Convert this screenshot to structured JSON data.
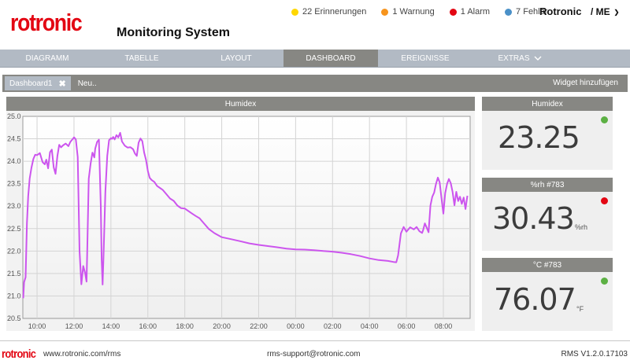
{
  "header": {
    "logo": "rotronic",
    "title": "Monitoring System",
    "status": [
      {
        "label": "22 Erinnerungen",
        "color": "#ffd700"
      },
      {
        "label": "1 Warnung",
        "color": "#f7941d"
      },
      {
        "label": "1 Alarm",
        "color": "#e30613"
      },
      {
        "label": "7 Fehler",
        "color": "#4a90c8"
      }
    ],
    "user": "Rotronic",
    "user_menu": "/ ME",
    "user_menu_chevron": "chevron-down-icon"
  },
  "nav": {
    "items": [
      {
        "label": "DIAGRAMM"
      },
      {
        "label": "TABELLE"
      },
      {
        "label": "LAYOUT"
      },
      {
        "label": "DASHBOARD",
        "active": true
      },
      {
        "label": "EREIGNISSE"
      },
      {
        "label": "EXTRAS"
      }
    ]
  },
  "dashboard_tabs": {
    "active_tab": "Dashboard1",
    "close_icon": "close-icon",
    "new_tab": "Neu..",
    "add_widget": "Widget hinzufügen"
  },
  "widgets": {
    "chart": {
      "title": "Humidex"
    },
    "values": [
      {
        "title": "Humidex",
        "value": "23.25",
        "unit": "",
        "status_color": "#5cb043"
      },
      {
        "title": "%rh #783",
        "value": "30.43",
        "unit": "%rh",
        "status_color": "#e30613"
      },
      {
        "title": "°C #783",
        "value": "76.07",
        "unit": "°F",
        "status_color": "#5cb043"
      }
    ]
  },
  "chart_data": {
    "type": "line",
    "title": "Humidex",
    "xlabel": "",
    "ylabel": "",
    "ylim": [
      20.5,
      25.0
    ],
    "yticks": [
      "25.0",
      "24.5",
      "24.0",
      "23.5",
      "23.0",
      "22.5",
      "22.0",
      "21.5",
      "21.0",
      "20.5"
    ],
    "xticks": [
      "10:00",
      "12:00",
      "14:00",
      "16:00",
      "18:00",
      "20:00",
      "22:00",
      "00:00",
      "02:00",
      "04:00",
      "06:00",
      "08:00"
    ],
    "xlim_hours_from_1000": [
      -0.77,
      23.45
    ],
    "grid": true,
    "line_color": "#cc55ee",
    "series": [
      {
        "name": "Humidex",
        "x_hours_from_1000": [
          -0.75,
          -0.7,
          -0.62,
          -0.55,
          -0.48,
          -0.4,
          -0.3,
          -0.2,
          -0.1,
          0.0,
          0.15,
          0.3,
          0.42,
          0.5,
          0.6,
          0.7,
          0.8,
          0.9,
          1.0,
          1.1,
          1.2,
          1.3,
          1.4,
          1.55,
          1.7,
          1.8,
          1.9,
          2.0,
          2.1,
          2.2,
          2.3,
          2.4,
          2.5,
          2.6,
          2.68,
          2.72,
          2.8,
          2.9,
          3.0,
          3.1,
          3.15,
          3.25,
          3.35,
          3.45,
          3.5,
          3.55,
          3.6,
          3.7,
          3.8,
          3.9,
          4.0,
          4.02,
          4.06,
          4.12,
          4.2,
          4.3,
          4.4,
          4.5,
          4.6,
          4.75,
          4.9,
          5.05,
          5.2,
          5.3,
          5.4,
          5.5,
          5.6,
          5.7,
          5.8,
          5.9,
          6.0,
          6.1,
          6.2,
          6.35,
          6.5,
          6.65,
          6.8,
          7.0,
          7.2,
          7.4,
          7.6,
          7.8,
          8.0,
          8.2,
          8.4,
          8.6,
          8.8,
          9.0,
          9.3,
          9.6,
          10.0,
          10.5,
          11.0,
          11.5,
          12.0,
          12.5,
          13.0,
          13.5,
          14.0,
          14.5,
          15.0,
          15.5,
          16.0,
          16.5,
          17.0,
          17.5,
          18.0,
          18.5,
          19.0,
          19.3,
          19.45,
          19.55,
          19.7,
          19.85,
          20.0,
          20.2,
          20.4,
          20.55,
          20.7,
          20.85,
          20.9,
          21.0,
          21.1,
          21.2,
          21.3,
          21.4,
          21.5,
          21.6,
          21.7,
          21.8,
          21.9,
          22.0,
          22.1,
          22.2,
          22.3,
          22.4,
          22.5,
          22.6,
          22.7,
          22.8,
          22.9,
          23.0,
          23.1,
          23.2,
          23.3
        ],
        "y": [
          20.95,
          21.3,
          21.4,
          22.6,
          23.2,
          23.6,
          23.85,
          24.05,
          24.15,
          24.15,
          24.2,
          24.0,
          23.95,
          24.05,
          23.85,
          24.2,
          24.25,
          23.85,
          23.7,
          24.1,
          24.35,
          24.3,
          24.35,
          24.4,
          24.35,
          24.45,
          24.5,
          24.55,
          24.5,
          24.1,
          22.0,
          21.25,
          21.65,
          21.5,
          21.3,
          22.0,
          23.6,
          23.95,
          24.2,
          24.1,
          24.3,
          24.45,
          24.5,
          23.0,
          21.8,
          21.25,
          21.9,
          23.3,
          24.1,
          24.45,
          24.5,
          24.5,
          24.5,
          24.55,
          24.5,
          24.6,
          24.55,
          24.65,
          24.45,
          24.35,
          24.3,
          24.3,
          24.25,
          24.15,
          24.1,
          24.4,
          24.5,
          24.45,
          24.2,
          24.05,
          23.8,
          23.65,
          23.6,
          23.55,
          23.45,
          23.4,
          23.35,
          23.25,
          23.15,
          23.1,
          23.0,
          22.95,
          22.95,
          22.9,
          22.85,
          22.8,
          22.75,
          22.65,
          22.5,
          22.4,
          22.3,
          22.25,
          22.2,
          22.15,
          22.12,
          22.1,
          22.08,
          22.06,
          22.05,
          22.05,
          22.04,
          22.02,
          22.0,
          21.97,
          21.93,
          21.88,
          21.82,
          21.78,
          21.76,
          21.74,
          21.74,
          21.9,
          22.4,
          22.55,
          22.45,
          22.55,
          22.5,
          22.55,
          22.45,
          22.4,
          22.45,
          22.6,
          22.5,
          22.4,
          23.0,
          23.2,
          23.3,
          23.5,
          23.65,
          23.55,
          23.2,
          22.85,
          23.3,
          23.5,
          23.6,
          23.5,
          23.3,
          23.0,
          23.3,
          23.1,
          23.2,
          23.05,
          23.2,
          22.95,
          23.25
        ]
      }
    ]
  },
  "footer": {
    "logo": "rotronic",
    "website": "www.rotronic.com/rms",
    "support": "rms-support@rotronic.com",
    "version": "RMS V1.2.0.17103"
  }
}
